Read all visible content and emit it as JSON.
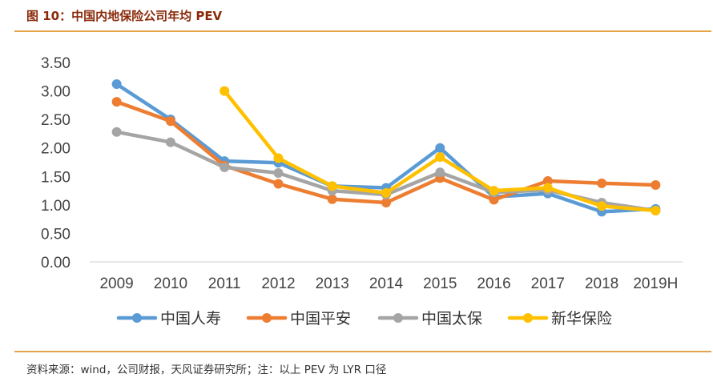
{
  "title": "图 10：中国内地保险公司年均 PEV",
  "source": "资料来源：wind，公司财报，天风证券研究所；注：以上 PEV 为 LYR 口径",
  "chart_data": {
    "type": "line",
    "categories": [
      "2009",
      "2010",
      "2011",
      "2012",
      "2013",
      "2014",
      "2015",
      "2016",
      "2017",
      "2018",
      "2019H"
    ],
    "ylim": [
      0,
      3.5
    ],
    "yticks": [
      "0.00",
      "0.50",
      "1.00",
      "1.50",
      "2.00",
      "2.50",
      "3.00",
      "3.50"
    ],
    "grid": false,
    "legend_position": "bottom",
    "series": [
      {
        "name": "中国人寿",
        "color": "#5b9bd5",
        "values": [
          3.12,
          2.5,
          1.77,
          1.74,
          1.33,
          1.3,
          2.0,
          1.14,
          1.2,
          0.88,
          0.93
        ]
      },
      {
        "name": "中国平安",
        "color": "#ed7d31",
        "values": [
          2.81,
          2.47,
          1.69,
          1.37,
          1.1,
          1.04,
          1.47,
          1.09,
          1.42,
          1.38,
          1.35
        ]
      },
      {
        "name": "中国太保",
        "color": "#a5a5a5",
        "values": [
          2.28,
          2.1,
          1.66,
          1.56,
          1.25,
          1.18,
          1.57,
          1.22,
          1.26,
          1.04,
          0.9
        ]
      },
      {
        "name": "新华保险",
        "color": "#ffc000",
        "values": [
          null,
          null,
          3.0,
          1.82,
          1.33,
          1.21,
          1.84,
          1.25,
          1.3,
          0.98,
          0.9
        ]
      }
    ]
  }
}
